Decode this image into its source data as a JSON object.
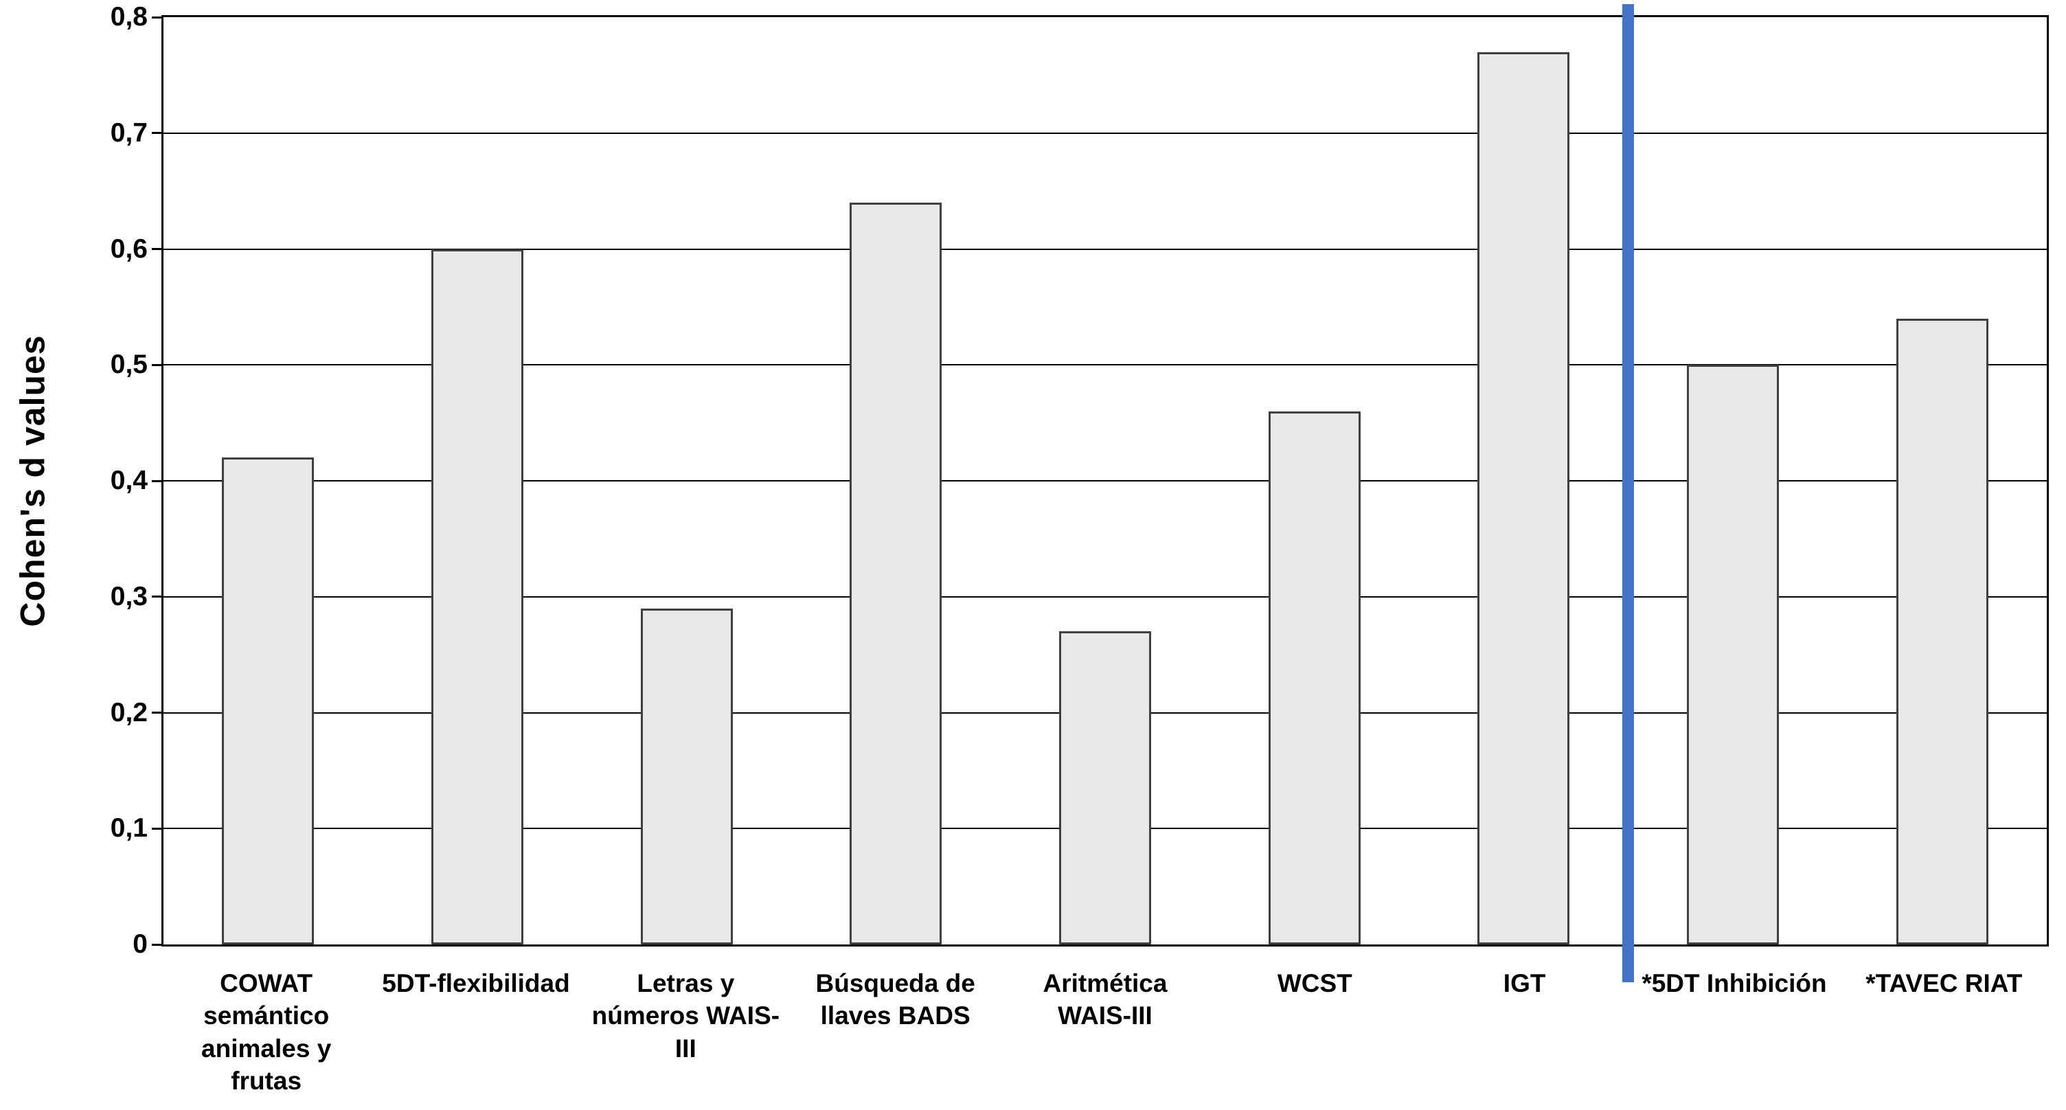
{
  "chart_data": {
    "type": "bar",
    "title": "",
    "ylabel": "Cohen's d values",
    "xlabel": "",
    "ylim": [
      0,
      0.8
    ],
    "ytick_step": 0.1,
    "ytick_labels": [
      "0",
      "0,1",
      "0,2",
      "0,3",
      "0,4",
      "0,5",
      "0,6",
      "0,7",
      "0,8"
    ],
    "categories": [
      "COWAT semántico animales y frutas",
      "5DT-flexibilidad",
      "Letras y números WAIS-III",
      "Búsqueda de llaves BADS",
      "Aritmética WAIS-III",
      "WCST",
      "IGT",
      "*5DT Inhibición",
      "*TAVEC RIAT"
    ],
    "category_lines": [
      [
        "COWAT",
        "semántico",
        "animales y",
        "frutas"
      ],
      [
        "5DT-flexibilidad"
      ],
      [
        "Letras y",
        "números WAIS-",
        "III"
      ],
      [
        "Búsqueda de",
        "llaves BADS"
      ],
      [
        "Aritmética",
        "WAIS-III"
      ],
      [
        "WCST"
      ],
      [
        "IGT"
      ],
      [
        "*5DT Inhibición"
      ],
      [
        "*TAVEC RIAT"
      ]
    ],
    "values": [
      0.42,
      0.6,
      0.29,
      0.64,
      0.27,
      0.46,
      0.77,
      0.5,
      0.54
    ],
    "divider_after_category": "IGT",
    "divider_after_index": 6,
    "grid": true,
    "legend": "none",
    "colors": {
      "bar_fill": "#e8e8e8",
      "bar_border": "#404040",
      "grid": "#000000",
      "frame": "#000000",
      "divider": "#4472c4",
      "background": "#ffffff",
      "text": "#000000"
    }
  }
}
